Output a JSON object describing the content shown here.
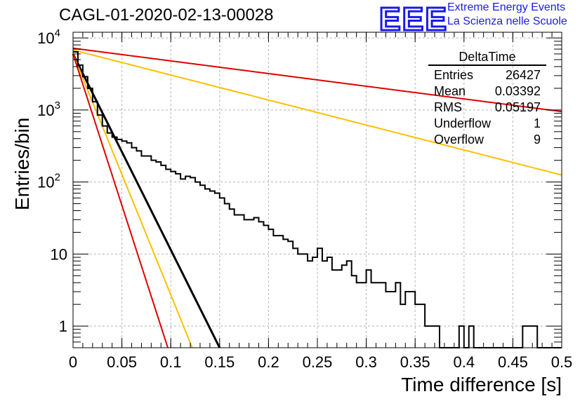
{
  "title": "CAGL-01-2020-02-13-00028",
  "logo": {
    "mark": "EEE",
    "line1": "Extreme Energy Events",
    "line2": "La Scienza nelle Scuole",
    "color": "#1a1ae6"
  },
  "stats_box": {
    "name": "DeltaTime",
    "rows": [
      {
        "key": "Entries",
        "value": "26427"
      },
      {
        "key": "Mean",
        "value": "0.03392"
      },
      {
        "key": "RMS",
        "value": "0.05197"
      },
      {
        "key": "Underflow",
        "value": "1"
      },
      {
        "key": "Overflow",
        "value": "9"
      }
    ]
  },
  "chart_data": {
    "type": "line",
    "xlabel": "Time difference [s]",
    "ylabel": "Entries/bin",
    "xlim": [
      0,
      0.5
    ],
    "ylim": [
      0.5,
      12000
    ],
    "yscale": "log",
    "grid": true,
    "x_ticks": [
      "0",
      "0.05",
      "0.1",
      "0.15",
      "0.2",
      "0.25",
      "0.3",
      "0.35",
      "0.4",
      "0.45",
      "0.5"
    ],
    "y_ticks": [
      {
        "value": 1,
        "label": "1"
      },
      {
        "value": 10,
        "label": "10"
      },
      {
        "value": 100,
        "label": "10^2"
      },
      {
        "value": 1000,
        "label": "10^3"
      },
      {
        "value": 10000,
        "label": "10^4"
      }
    ],
    "histogram": {
      "color": "#000000",
      "bin_width": 0.005,
      "values": [
        6400,
        4200,
        2900,
        2000,
        1300,
        850,
        600,
        480,
        420,
        390,
        370,
        350,
        300,
        270,
        230,
        230,
        200,
        190,
        170,
        150,
        140,
        130,
        110,
        120,
        115,
        100,
        90,
        80,
        75,
        70,
        60,
        50,
        42,
        35,
        35,
        30,
        30,
        32,
        28,
        25,
        22,
        18,
        18,
        16,
        15,
        12,
        10,
        10,
        8,
        9,
        12,
        8,
        9,
        6,
        6,
        7,
        8,
        5,
        4,
        4,
        6,
        4,
        4,
        4,
        3,
        3,
        4,
        2,
        3,
        3,
        2,
        2,
        1,
        1,
        1,
        0,
        0,
        0,
        0,
        1,
        0,
        1,
        0,
        0,
        0,
        0,
        0,
        0,
        0,
        0,
        0,
        0,
        1,
        1,
        1,
        0,
        0,
        0,
        0,
        0
      ]
    },
    "curves": [
      {
        "color": "#000000",
        "y0": 6000,
        "x_at_half": 0.15
      },
      {
        "color": "#ffc000",
        "y0": 6000,
        "x_at_half": 0.122
      },
      {
        "color": "#e00000",
        "y0": 6000,
        "x_at_half": 0.097
      },
      {
        "color": "#ffc000",
        "y0": 6800,
        "x_at": 0.5,
        "y_at": 125
      },
      {
        "color": "#e00000",
        "y0": 7200,
        "x_at": 0.5,
        "y_at": 950
      }
    ]
  }
}
